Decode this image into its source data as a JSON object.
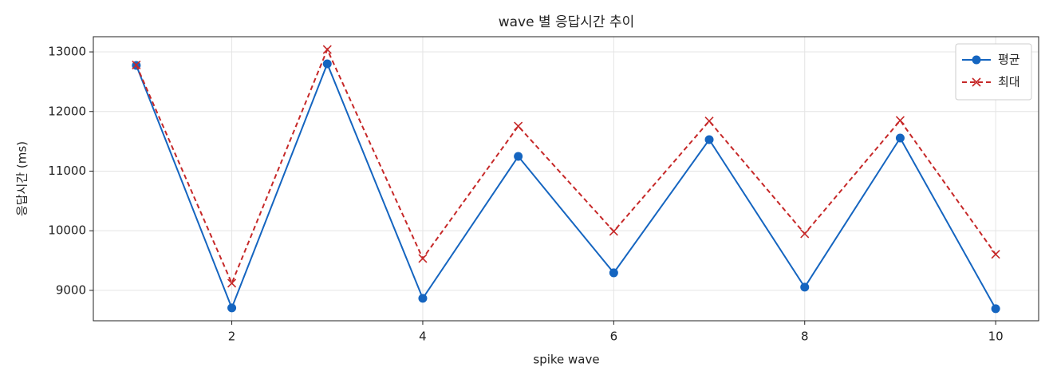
{
  "chart_data": {
    "type": "line",
    "title": "wave 별 응답시간 추이",
    "xlabel": "spike wave",
    "ylabel": "응답시간 (ms)",
    "x": [
      1,
      2,
      3,
      4,
      5,
      6,
      7,
      8,
      9,
      10
    ],
    "series": [
      {
        "name": "평균",
        "color": "#1565c0",
        "marker": "o",
        "linestyle": "solid",
        "values": [
          12773,
          8706,
          12800,
          8866,
          11247,
          9294,
          11528,
          9054,
          11555,
          8693
        ]
      },
      {
        "name": "최대",
        "color": "#c62828",
        "marker": "x",
        "linestyle": "dashed",
        "values": [
          12780,
          9120,
          13040,
          9535,
          11755,
          9990,
          11840,
          9950,
          11850,
          9605
        ]
      }
    ],
    "xlim": [
      0.55,
      10.45
    ],
    "xticks": [
      2,
      4,
      6,
      8,
      10
    ],
    "ylim": [
      8490,
      13255
    ],
    "yticks": [
      9000,
      10000,
      11000,
      12000,
      13000
    ],
    "grid": true,
    "legend": "upper right"
  }
}
